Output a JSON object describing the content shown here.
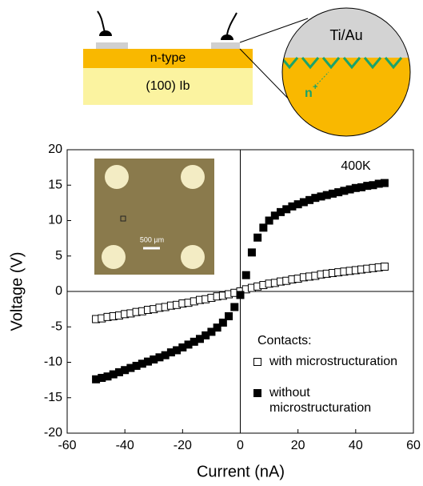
{
  "diagram": {
    "layer_top": "n-type",
    "substrate": "(100) Ib",
    "contact_metal": "Ti/Au",
    "doped_region": "n",
    "doped_sup": "+"
  },
  "inset": {
    "scale_label": "500 µm"
  },
  "chart_data": {
    "type": "scatter",
    "x_label": "Current (nA)",
    "y_label": "Voltage (V)",
    "annotation": "400K",
    "legend_title": "Contacts:",
    "x": [
      -50,
      -48,
      -46,
      -44,
      -42,
      -40,
      -38,
      -36,
      -34,
      -32,
      -30,
      -28,
      -26,
      -24,
      -22,
      -20,
      -18,
      -16,
      -14,
      -12,
      -10,
      -8,
      -6,
      -4,
      -2,
      0,
      2,
      4,
      6,
      8,
      10,
      12,
      14,
      16,
      18,
      20,
      22,
      24,
      26,
      28,
      30,
      32,
      34,
      36,
      38,
      40,
      42,
      44,
      46,
      48,
      50
    ],
    "series": [
      {
        "name": "with microstructuration",
        "color": "#000000",
        "filled": false,
        "values": [
          -3.9,
          -3.8,
          -3.6,
          -3.5,
          -3.4,
          -3.2,
          -3.1,
          -2.9,
          -2.8,
          -2.6,
          -2.5,
          -2.3,
          -2.2,
          -2.0,
          -1.9,
          -1.7,
          -1.6,
          -1.4,
          -1.2,
          -1.1,
          -0.9,
          -0.7,
          -0.6,
          -0.4,
          -0.2,
          0,
          0.3,
          0.5,
          0.7,
          0.9,
          1.1,
          1.2,
          1.4,
          1.5,
          1.7,
          1.8,
          2.0,
          2.1,
          2.2,
          2.4,
          2.5,
          2.6,
          2.7,
          2.8,
          2.9,
          3.0,
          3.1,
          3.2,
          3.3,
          3.4,
          3.5
        ]
      },
      {
        "name": "without microstructuration",
        "color": "#000000",
        "filled": true,
        "values": [
          -12.4,
          -12.2,
          -12.0,
          -11.7,
          -11.4,
          -11.1,
          -10.8,
          -10.5,
          -10.2,
          -9.9,
          -9.6,
          -9.3,
          -9.0,
          -8.6,
          -8.3,
          -7.9,
          -7.5,
          -7.1,
          -6.7,
          -6.2,
          -5.7,
          -5.1,
          -4.4,
          -3.5,
          -2.2,
          -0.5,
          2.3,
          5.5,
          7.6,
          9.0,
          10.0,
          10.7,
          11.2,
          11.6,
          12.0,
          12.3,
          12.6,
          12.9,
          13.2,
          13.4,
          13.6,
          13.8,
          14.0,
          14.2,
          14.4,
          14.6,
          14.7,
          14.9,
          15.0,
          15.2,
          15.3
        ]
      }
    ],
    "xlim": [
      -60,
      60
    ],
    "xticks": [
      -60,
      -40,
      -20,
      0,
      20,
      40,
      60
    ],
    "ylim": [
      -20,
      20
    ],
    "yticks": [
      -20,
      -15,
      -10,
      -5,
      0,
      5,
      10,
      15,
      20
    ]
  }
}
